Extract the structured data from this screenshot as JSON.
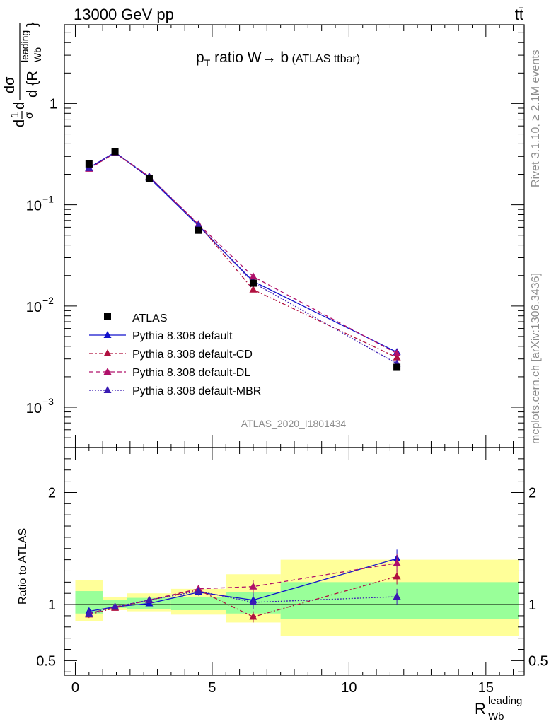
{
  "header": {
    "left": "13000 GeV pp",
    "right": "tt̄"
  },
  "side_text": {
    "top": "Rivet 3.1.10, ≥ 2.1M events",
    "bottom": "mcplots.cern.ch [arXiv:1306.3436]"
  },
  "analysis_id": "ATLAS_2020_I1801434",
  "chart_data": [
    {
      "type": "line",
      "title": "p_T ratio W → b (ATLAS ttbar)",
      "title_parts": {
        "p": "p",
        "sub": "T",
        "rest": " ratio W",
        "arrow": "→",
        "b": " b",
        "small": " (ATLAS ttbar)"
      },
      "ylabel_parts": {
        "d": "d",
        "sigma": "σ",
        "one": "1",
        "ylab_tail": "dσ",
        "tail": "d {R",
        "sub": "Wb",
        "sup": "leading",
        "close": "}"
      },
      "yscale": "log",
      "ylim": [
        0.0004,
        6
      ],
      "xlim": [
        -0.4,
        16.4
      ],
      "yticks": [
        {
          "v": 0.001,
          "base": "10",
          "exp": "−3"
        },
        {
          "v": 0.01,
          "base": "10",
          "exp": "−2"
        },
        {
          "v": 0.1,
          "base": "10",
          "exp": "−1"
        },
        {
          "v": 1,
          "label": "1"
        }
      ],
      "legend_position": "lower-left",
      "data": {
        "name": "ATLAS",
        "x": [
          0.5,
          1.45,
          2.7,
          4.5,
          6.5,
          11.75
        ],
        "y": [
          0.253,
          0.335,
          0.183,
          0.056,
          0.0168,
          0.00248
        ]
      },
      "series": [
        {
          "name": "Pythia 8.308 default",
          "color": "#1111cc",
          "dash": "",
          "y": [
            0.232,
            0.33,
            0.185,
            0.062,
            0.0175,
            0.0035
          ]
        },
        {
          "name": "Pythia 8.308 default-CD",
          "color": "#b0103f",
          "dash": "6,3,2,3",
          "y": [
            0.228,
            0.323,
            0.19,
            0.064,
            0.0145,
            0.0031
          ]
        },
        {
          "name": "Pythia 8.308 default-DL",
          "color": "#b0106a",
          "dash": "6,4",
          "y": [
            0.226,
            0.325,
            0.19,
            0.064,
            0.0195,
            0.0034
          ]
        },
        {
          "name": "Pythia 8.308 default-MBR",
          "color": "#3a1bb3",
          "dash": "2,2",
          "y": [
            0.23,
            0.328,
            0.19,
            0.063,
            0.017,
            0.0027
          ]
        }
      ]
    },
    {
      "type": "line",
      "ylabel": "Ratio to ATLAS",
      "xlabel_parts": {
        "R": "R",
        "sub": "Wb",
        "sup": "leading"
      },
      "ylim": [
        0.37,
        2.4
      ],
      "xlim": [
        -0.4,
        16.4
      ],
      "yticks": [
        {
          "v": 0.5,
          "label": "0.5"
        },
        {
          "v": 1,
          "label": "1"
        },
        {
          "v": 2,
          "label": "2"
        }
      ],
      "xticks": [
        {
          "v": 0,
          "label": "0"
        },
        {
          "v": 5,
          "label": "5"
        },
        {
          "v": 10,
          "label": "10"
        },
        {
          "v": 15,
          "label": "15"
        }
      ],
      "bins": [
        {
          "x0": 0,
          "x1": 1,
          "green": [
            0.92,
            1.12
          ],
          "yellow": [
            0.85,
            1.22
          ]
        },
        {
          "x0": 1,
          "x1": 1.9,
          "green": [
            0.97,
            1.04
          ],
          "yellow": [
            0.95,
            1.07
          ]
        },
        {
          "x0": 1.9,
          "x1": 3.5,
          "green": [
            0.96,
            1.06
          ],
          "yellow": [
            0.94,
            1.1
          ]
        },
        {
          "x0": 3.5,
          "x1": 5.5,
          "green": [
            0.95,
            1.07
          ],
          "yellow": [
            0.91,
            1.14
          ]
        },
        {
          "x0": 5.5,
          "x1": 7.5,
          "green": [
            0.92,
            1.11
          ],
          "yellow": [
            0.84,
            1.27
          ]
        },
        {
          "x0": 7.5,
          "x1": 16.2,
          "green": [
            0.87,
            1.2
          ],
          "yellow": [
            0.72,
            1.4
          ]
        }
      ],
      "series": [
        {
          "name": "Pythia 8.308 default",
          "color": "#1111cc",
          "dash": "",
          "x": [
            0.5,
            1.45,
            2.7,
            4.5,
            6.5,
            11.75
          ],
          "y": [
            0.94,
            0.98,
            1.01,
            1.11,
            1.04,
            1.41
          ],
          "err": [
            0.03,
            0.02,
            0.02,
            0.03,
            0.06,
            0.08
          ]
        },
        {
          "name": "Pythia 8.308 default-CD",
          "color": "#b0103f",
          "dash": "6,3,2,3",
          "x": [
            0.5,
            1.45,
            2.7,
            4.5,
            6.5,
            11.75
          ],
          "y": [
            0.91,
            0.97,
            1.04,
            1.13,
            0.89,
            1.25
          ],
          "err": [
            0.03,
            0.02,
            0.02,
            0.03,
            0.05,
            0.07
          ]
        },
        {
          "name": "Pythia 8.308 default-DL",
          "color": "#b0106a",
          "dash": "6,4",
          "x": [
            0.5,
            1.45,
            2.7,
            4.5,
            6.5,
            11.75
          ],
          "y": [
            0.92,
            0.98,
            1.04,
            1.14,
            1.16,
            1.37
          ],
          "err": [
            0.03,
            0.02,
            0.02,
            0.03,
            0.06,
            0.08
          ]
        },
        {
          "name": "Pythia 8.308 default-MBR",
          "color": "#3a1bb3",
          "dash": "2,2",
          "x": [
            0.5,
            1.45,
            2.7,
            4.5,
            6.5,
            11.75
          ],
          "y": [
            0.92,
            0.98,
            1.04,
            1.12,
            1.02,
            1.07
          ],
          "err": [
            0.03,
            0.02,
            0.02,
            0.03,
            0.06,
            0.07
          ]
        }
      ]
    }
  ]
}
